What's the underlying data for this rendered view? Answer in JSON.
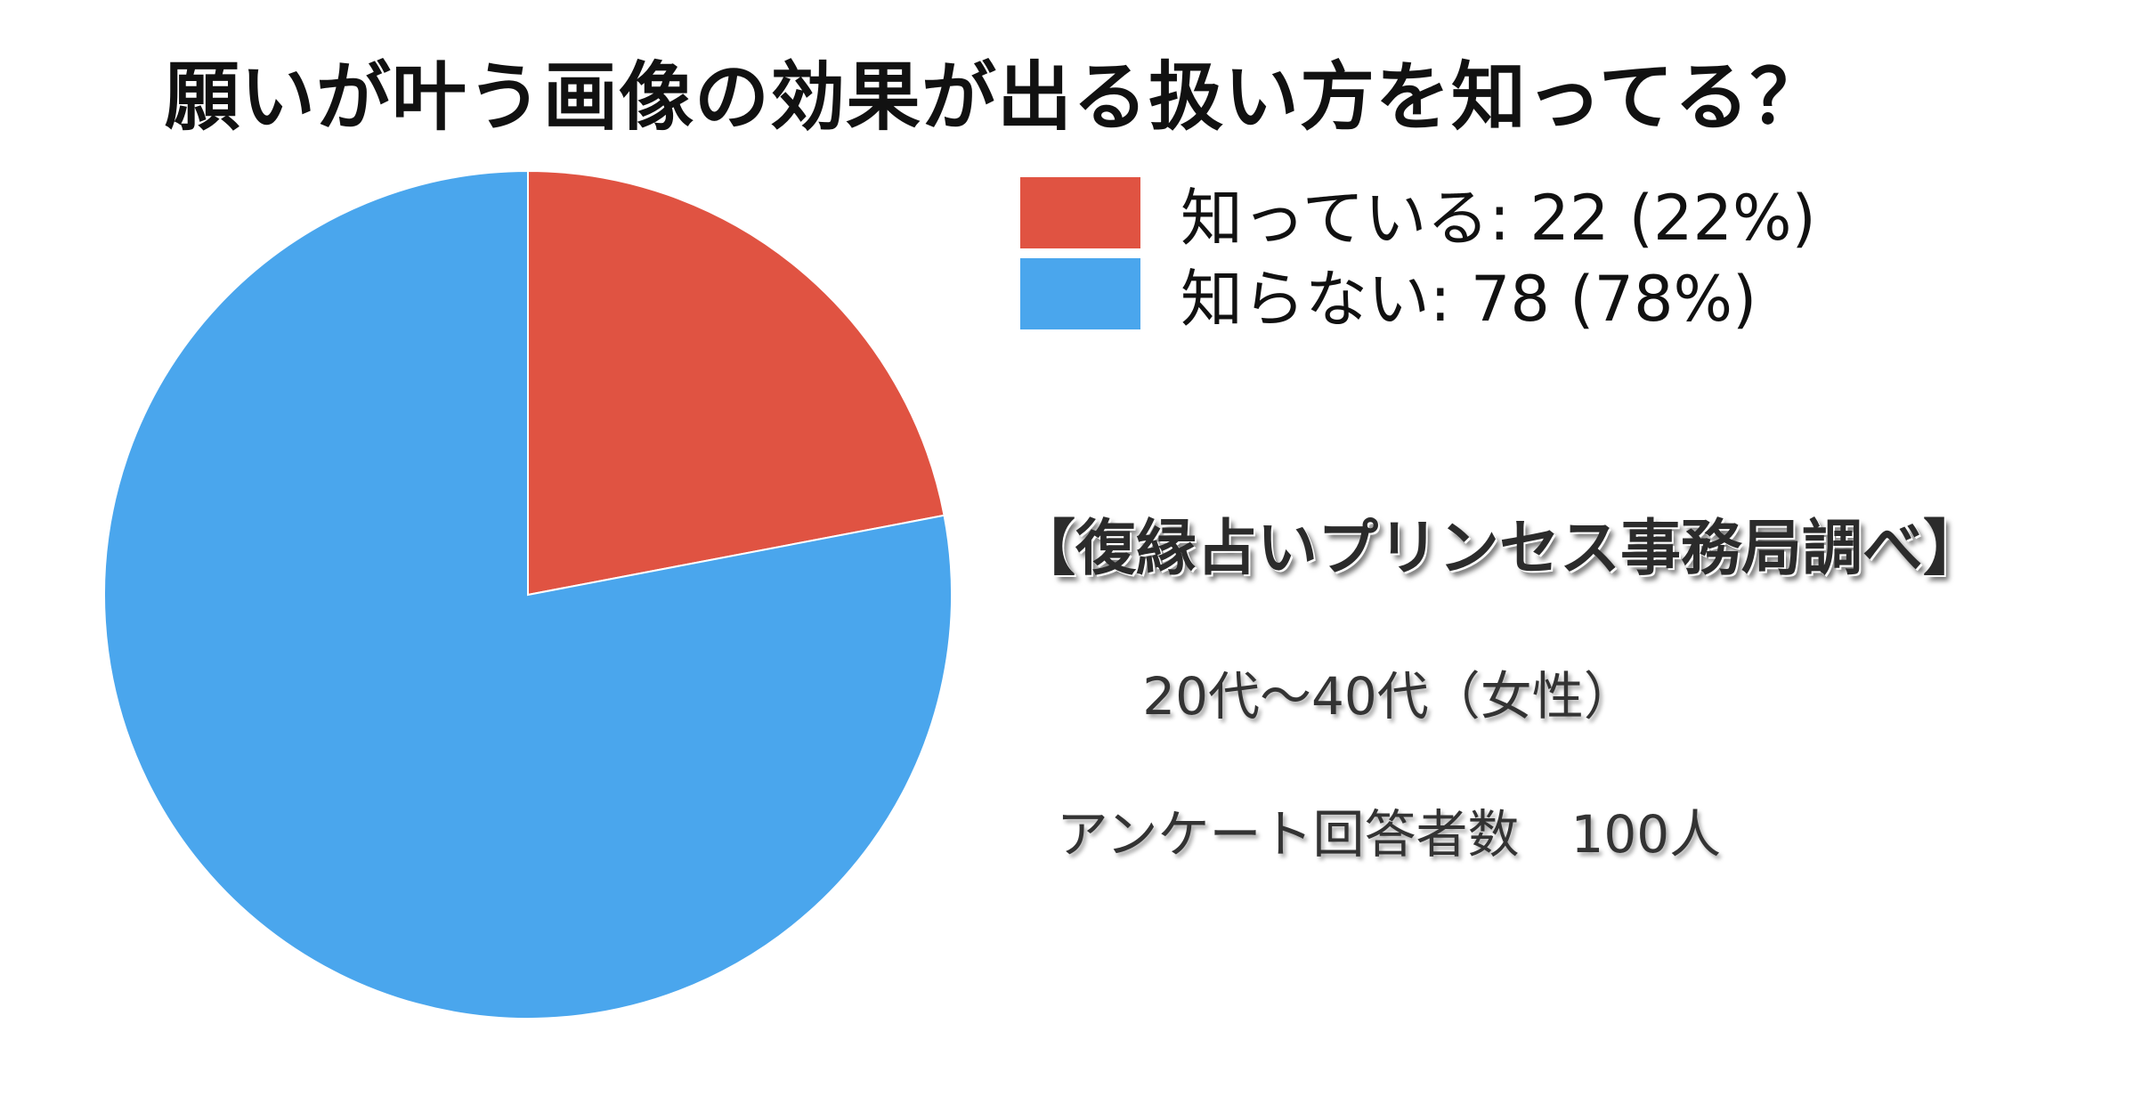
{
  "chart_data": {
    "type": "pie",
    "title": "願いが叶う画像の効果が出る扱い方を知ってる？",
    "slices": [
      {
        "label": "知っている",
        "value": 22,
        "percent": 22,
        "color": "#E05342",
        "legend_text": "知っている: 22 (22%)"
      },
      {
        "label": "知らない",
        "value": 78,
        "percent": 78,
        "color": "#4AA6ED",
        "legend_text": "知らない: 78 (78%)"
      }
    ],
    "legend": "top-right",
    "start_angle": "12 o'clock",
    "direction": "clockwise"
  },
  "notes": {
    "source": "【復縁占いプリンセス事務局調べ】",
    "demographic": "20代〜40代（女性）",
    "respondents": "アンケート回答者数　100人"
  }
}
